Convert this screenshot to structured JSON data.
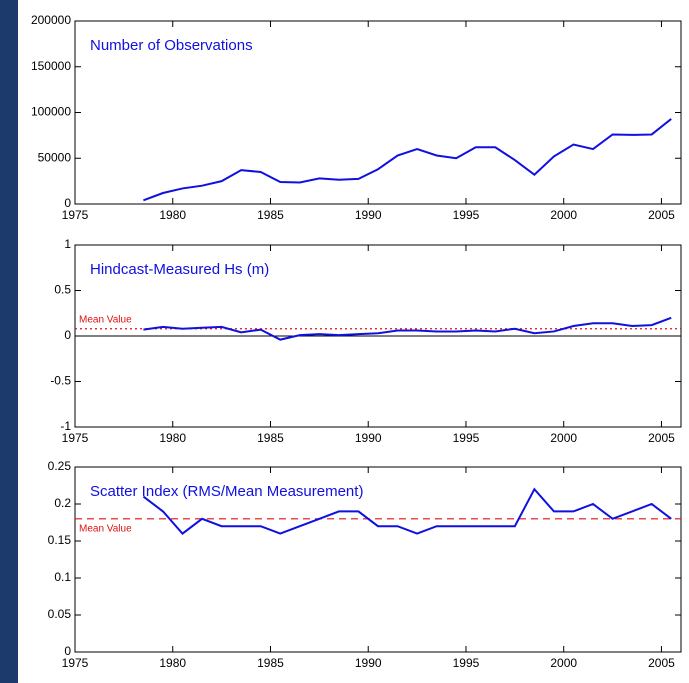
{
  "chart_data": [
    {
      "type": "line",
      "title": "Number of Observations",
      "x": [
        1978.5,
        1979.5,
        1980.5,
        1981.5,
        1982.5,
        1983.5,
        1984.5,
        1985.5,
        1986.5,
        1987.5,
        1988.5,
        1989.5,
        1990.5,
        1991.5,
        1992.5,
        1993.5,
        1994.5,
        1995.5,
        1996.5,
        1997.5,
        1998.5,
        1999.5,
        2000.5,
        2001.5,
        2002.5,
        2003.5,
        2004.5,
        2005.5
      ],
      "series": [
        {
          "color": "#1010e0",
          "values": [
            4000,
            12000,
            17000,
            20000,
            25000,
            37000,
            35000,
            24000,
            23500,
            28000,
            26500,
            27500,
            38000,
            53000,
            60000,
            53000,
            50000,
            62000,
            62000,
            48000,
            32000,
            52000,
            65000,
            60000,
            76000,
            75500,
            76000,
            93000
          ]
        }
      ],
      "xlim": [
        1975,
        2006
      ],
      "xticks": [
        1975,
        1980,
        1985,
        1990,
        1995,
        2000,
        2005
      ],
      "ylim": [
        0,
        200000
      ],
      "yticks": [
        0,
        50000,
        100000,
        150000,
        200000
      ]
    },
    {
      "type": "line",
      "title": "Hindcast-Measured Hs (m)",
      "x": [
        1978.5,
        1979.5,
        1980.5,
        1981.5,
        1982.5,
        1983.5,
        1984.5,
        1985.5,
        1986.5,
        1987.5,
        1988.5,
        1989.5,
        1990.5,
        1991.5,
        1992.5,
        1993.5,
        1994.5,
        1995.5,
        1996.5,
        1997.5,
        1998.5,
        1999.5,
        2000.5,
        2001.5,
        2002.5,
        2003.5,
        2004.5,
        2005.5
      ],
      "series": [
        {
          "color": "#1010e0",
          "values": [
            0.07,
            0.1,
            0.08,
            0.09,
            0.1,
            0.04,
            0.07,
            -0.04,
            0.01,
            0.02,
            0.01,
            0.02,
            0.03,
            0.06,
            0.06,
            0.05,
            0.05,
            0.06,
            0.05,
            0.08,
            0.03,
            0.05,
            0.11,
            0.14,
            0.14,
            0.11,
            0.12,
            0.2
          ]
        }
      ],
      "xlim": [
        1975,
        2006
      ],
      "xticks": [
        1975,
        1980,
        1985,
        1990,
        1995,
        2000,
        2005
      ],
      "ylim": [
        -1,
        1
      ],
      "yticks": [
        -1,
        -0.5,
        0,
        0.5,
        1
      ],
      "hline": 0,
      "mean_line": {
        "value": 0.08,
        "label": "Mean Value",
        "color": "#e01010",
        "dash": "dotted",
        "label_position": "above"
      }
    },
    {
      "type": "line",
      "title": "Scatter Index (RMS/Mean Measurement)",
      "x": [
        1978.5,
        1979.5,
        1980.5,
        1981.5,
        1982.5,
        1983.5,
        1984.5,
        1985.5,
        1986.5,
        1987.5,
        1988.5,
        1989.5,
        1990.5,
        1991.5,
        1992.5,
        1993.5,
        1994.5,
        1995.5,
        1996.5,
        1997.5,
        1998.5,
        1999.5,
        2000.5,
        2001.5,
        2002.5,
        2003.5,
        2004.5,
        2005.5
      ],
      "series": [
        {
          "color": "#1010e0",
          "values": [
            0.21,
            0.19,
            0.16,
            0.18,
            0.17,
            0.17,
            0.17,
            0.16,
            0.17,
            0.18,
            0.19,
            0.19,
            0.17,
            0.17,
            0.16,
            0.17,
            0.17,
            0.17,
            0.17,
            0.17,
            0.22,
            0.19,
            0.19,
            0.2,
            0.18,
            0.19,
            0.2,
            0.18
          ]
        }
      ],
      "xlim": [
        1975,
        2006
      ],
      "xticks": [
        1975,
        1980,
        1985,
        1990,
        1995,
        2000,
        2005
      ],
      "ylim": [
        0,
        0.25
      ],
      "yticks": [
        0,
        0.05,
        0.1,
        0.15,
        0.2,
        0.25
      ],
      "mean_line": {
        "value": 0.18,
        "label": "Mean Value",
        "color": "#e01010",
        "dash": "dashed",
        "label_position": "below"
      }
    }
  ]
}
